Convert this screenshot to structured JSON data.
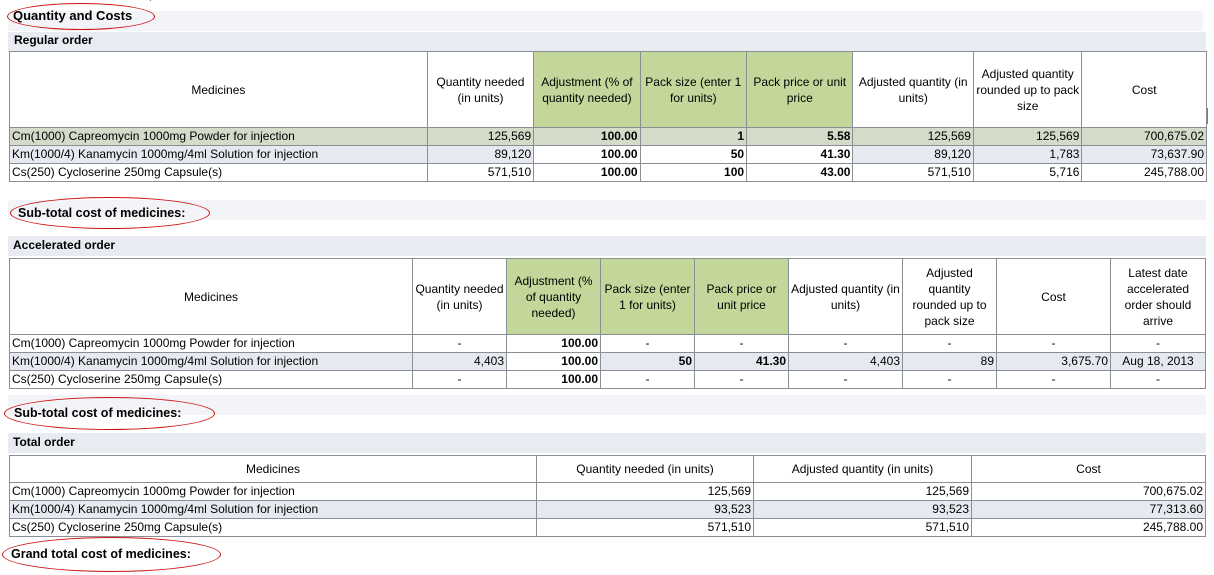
{
  "header": {
    "title": "Quantity and Costs"
  },
  "regular": {
    "label": "Regular order",
    "subtotal_label": "Sub-total cost of medicines:",
    "columns": [
      "Medicines",
      "Quantity needed (in units)",
      "Adjustment (% of quantity needed)",
      "Pack size (enter 1 for units)",
      "Pack price or unit price",
      "Adjusted quantity (in units)",
      "Adjusted quantity rounded up to pack size",
      "Cost"
    ],
    "rows": [
      [
        "Cm(1000)  Capreomycin  1000mg  Powder for injection",
        "125,569",
        "100.00",
        "1",
        "5.58",
        "125,569",
        "125,569",
        "700,675.02"
      ],
      [
        "Km(1000/4)  Kanamycin  1000mg/4ml  Solution for injection",
        "89,120",
        "100.00",
        "50",
        "41.30",
        "89,120",
        "1,783",
        "73,637.90"
      ],
      [
        "Cs(250)  Cycloserine  250mg  Capsule(s)",
        "571,510",
        "100.00",
        "100",
        "43.00",
        "571,510",
        "5,716",
        "245,788.00"
      ]
    ]
  },
  "accelerated": {
    "label": "Accelerated order",
    "subtotal_label": "Sub-total cost of medicines:",
    "columns": [
      "Medicines",
      "Quantity needed (in units)",
      "Adjustment (% of quantity needed)",
      "Pack size (enter 1 for units)",
      "Pack price or unit price",
      "Adjusted quantity (in units)",
      "Adjusted quantity rounded up to pack size",
      "Cost",
      "Latest date accelerated order should arrive"
    ],
    "rows": [
      [
        "Cm(1000)  Capreomycin  1000mg  Powder for injection",
        "-",
        "100.00",
        "-",
        "-",
        "-",
        "-",
        "-",
        "-"
      ],
      [
        "Km(1000/4)  Kanamycin  1000mg/4ml  Solution for injection",
        "4,403",
        "100.00",
        "50",
        "41.30",
        "4,403",
        "89",
        "3,675.70",
        "Aug 18, 2013"
      ],
      [
        "Cs(250)  Cycloserine  250mg  Capsule(s)",
        "-",
        "100.00",
        "-",
        "-",
        "-",
        "-",
        "-",
        "-"
      ]
    ]
  },
  "total": {
    "label": "Total order",
    "grand_total_label": "Grand total cost of medicines:",
    "columns": [
      "Medicines",
      "Quantity needed (in units)",
      "Adjusted quantity (in units)",
      "Cost"
    ],
    "rows": [
      [
        "Cm(1000)  Capreomycin  1000mg  Powder for injection",
        "125,569",
        "125,569",
        "700,675.02"
      ],
      [
        "Km(1000/4)  Kanamycin  1000mg/4ml  Solution for injection",
        "93,523",
        "93,523",
        "77,313.60"
      ],
      [
        "Cs(250)  Cycloserine  250mg  Capsule(s)",
        "571,510",
        "571,510",
        "245,788.00"
      ]
    ]
  },
  "colors": {
    "header_green": "#c4d79b",
    "annotation_red": "#cc1111",
    "selected_row": "#d4dbc8",
    "alt_row": "#e6eaf0"
  }
}
